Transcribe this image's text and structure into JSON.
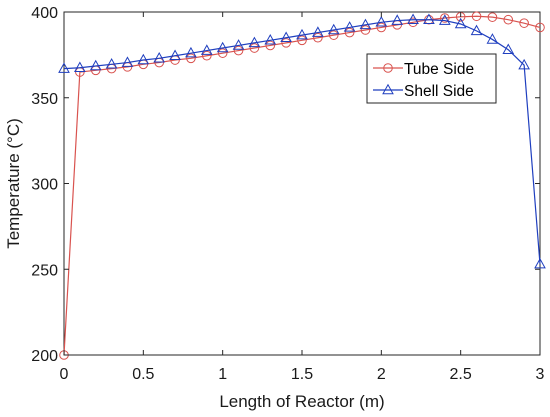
{
  "chart_data": {
    "type": "line",
    "xlabel": "Length of Reactor (m)",
    "ylabel": "Temperature (°C)",
    "xlim": [
      0,
      3
    ],
    "ylim": [
      200,
      400
    ],
    "xticks": [
      0,
      0.5,
      1,
      1.5,
      2,
      2.5,
      3
    ],
    "xtick_labels": [
      "0",
      "0.5",
      "1",
      "1.5",
      "2",
      "2.5",
      "3"
    ],
    "yticks": [
      200,
      250,
      300,
      350,
      400
    ],
    "ytick_labels": [
      "200",
      "250",
      "300",
      "350",
      "400"
    ],
    "grid": false,
    "legend_position": "top-right",
    "series": [
      {
        "name": "Tube Side",
        "marker": "circle",
        "color": "#d9534f",
        "x": [
          0,
          0.1,
          0.2,
          0.3,
          0.4,
          0.5,
          0.6,
          0.7,
          0.8,
          0.9,
          1.0,
          1.1,
          1.2,
          1.3,
          1.4,
          1.5,
          1.6,
          1.7,
          1.8,
          1.9,
          2.0,
          2.1,
          2.2,
          2.3,
          2.4,
          2.5,
          2.6,
          2.7,
          2.8,
          2.9,
          3.0
        ],
        "y": [
          200,
          365,
          366,
          367,
          368,
          369.5,
          370.5,
          372,
          373,
          374.5,
          376,
          377.5,
          379,
          380.5,
          382,
          383.5,
          385,
          386.5,
          388,
          389.5,
          391,
          392.5,
          394,
          395.5,
          396.5,
          397.2,
          397.5,
          397,
          395.5,
          393.5,
          391
        ]
      },
      {
        "name": "Shell Side",
        "marker": "triangle",
        "color": "#1f3fbf",
        "x": [
          0,
          0.1,
          0.2,
          0.3,
          0.4,
          0.5,
          0.6,
          0.7,
          0.8,
          0.9,
          1.0,
          1.1,
          1.2,
          1.3,
          1.4,
          1.5,
          1.6,
          1.7,
          1.8,
          1.9,
          2.0,
          2.1,
          2.2,
          2.3,
          2.4,
          2.5,
          2.6,
          2.7,
          2.8,
          2.9,
          3.0
        ],
        "y": [
          367,
          367.5,
          368.5,
          369.5,
          370.5,
          372,
          373,
          374.5,
          376,
          377.5,
          379,
          380.5,
          382,
          383.5,
          385,
          386.5,
          388,
          389.5,
          391,
          392.5,
          394,
          395,
          395.5,
          395.5,
          395,
          393,
          389,
          384,
          378,
          369,
          253
        ]
      }
    ]
  }
}
